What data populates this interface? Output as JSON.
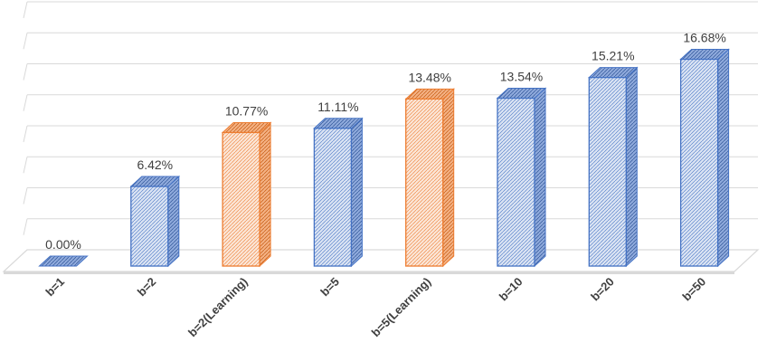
{
  "chart_data": {
    "type": "bar",
    "style": "3d-column",
    "categories": [
      "b=1",
      "b=2",
      "b=2(Learning)",
      "b=5",
      "b=5(Learning)",
      "b=10",
      "b=20",
      "b=50"
    ],
    "values": [
      0.0,
      6.42,
      10.77,
      11.11,
      13.48,
      13.54,
      15.21,
      16.68
    ],
    "data_labels": [
      "0.00%",
      "6.42%",
      "10.77%",
      "11.11%",
      "13.48%",
      "13.54%",
      "15.21%",
      "16.68%"
    ],
    "highlighted": [
      false,
      false,
      true,
      false,
      true,
      false,
      false,
      false
    ],
    "ylim": [
      0,
      20
    ],
    "yticks": [
      0,
      2.5,
      5,
      7.5,
      10,
      12.5,
      15,
      17.5,
      20
    ],
    "grid": true,
    "legend": "none",
    "colors": {
      "default_stroke": "#4472C4",
      "default_fill": "#DAE3F3",
      "highlight_stroke": "#ED7D31",
      "highlight_fill": "#FBE5D6",
      "grid": "#D9D9D9",
      "floor": "#D9D9D9"
    }
  }
}
